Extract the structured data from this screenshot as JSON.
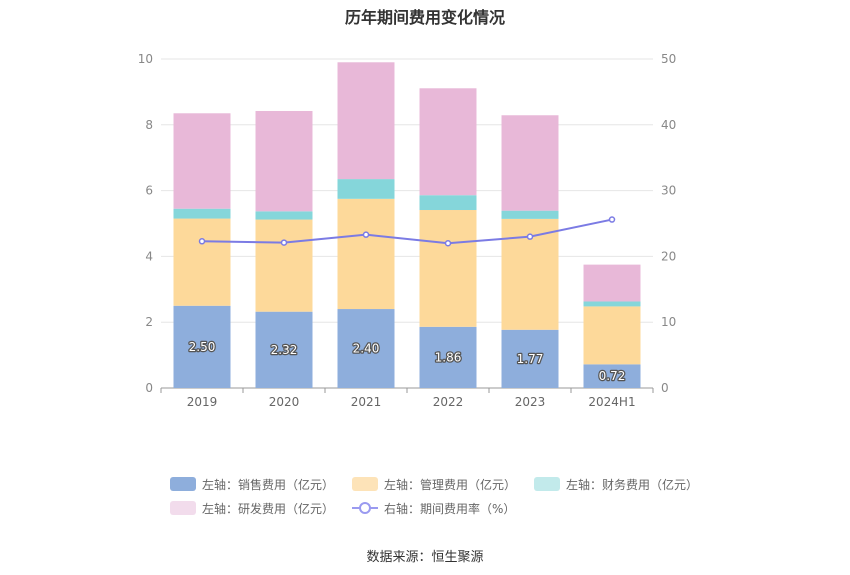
{
  "title": "历年期间费用变化情况",
  "source": "数据来源：恒生聚源",
  "chart_data": {
    "type": "bar",
    "stacked": true,
    "categories": [
      "2019",
      "2020",
      "2021",
      "2022",
      "2023",
      "2024H1"
    ],
    "left_axis": {
      "ylim": [
        0,
        10
      ],
      "ticks": [
        "0",
        "2",
        "4",
        "6",
        "8",
        "10"
      ]
    },
    "right_axis": {
      "ylim": [
        0,
        50
      ],
      "ticks": [
        "0",
        "10",
        "20",
        "30",
        "40",
        "50"
      ]
    },
    "series": [
      {
        "name": "左轴：销售费用（亿元）",
        "axis": "left",
        "color": "#8eaedc",
        "values": [
          2.5,
          2.32,
          2.4,
          1.86,
          1.77,
          0.72
        ],
        "labels": [
          "2.50",
          "2.32",
          "2.40",
          "1.86",
          "1.77",
          "0.72"
        ]
      },
      {
        "name": "左轴：管理费用（亿元）",
        "axis": "left",
        "color": "#fdd99a",
        "values": [
          2.65,
          2.8,
          3.35,
          3.55,
          3.37,
          1.76
        ]
      },
      {
        "name": "左轴：财务费用（亿元）",
        "axis": "left",
        "color": "#85d6da",
        "values": [
          0.3,
          0.25,
          0.6,
          0.45,
          0.25,
          0.15
        ]
      },
      {
        "name": "左轴：研发费用（亿元）",
        "axis": "left",
        "color": "#e8b8d8",
        "values": [
          2.9,
          3.05,
          3.55,
          3.25,
          2.9,
          1.12
        ]
      },
      {
        "name": "右轴：期间费用率（%）",
        "axis": "right",
        "type": "line",
        "color": "#7b7be4",
        "values": [
          22.3,
          22.1,
          23.3,
          22.0,
          23.0,
          25.6
        ]
      }
    ],
    "legend": {
      "position": "bottom",
      "swatch_colors": [
        "#8eaedc",
        "#fde3b8",
        "#c2eaeb",
        "#f2dcec",
        "#9a9af0"
      ]
    },
    "grid": true
  }
}
